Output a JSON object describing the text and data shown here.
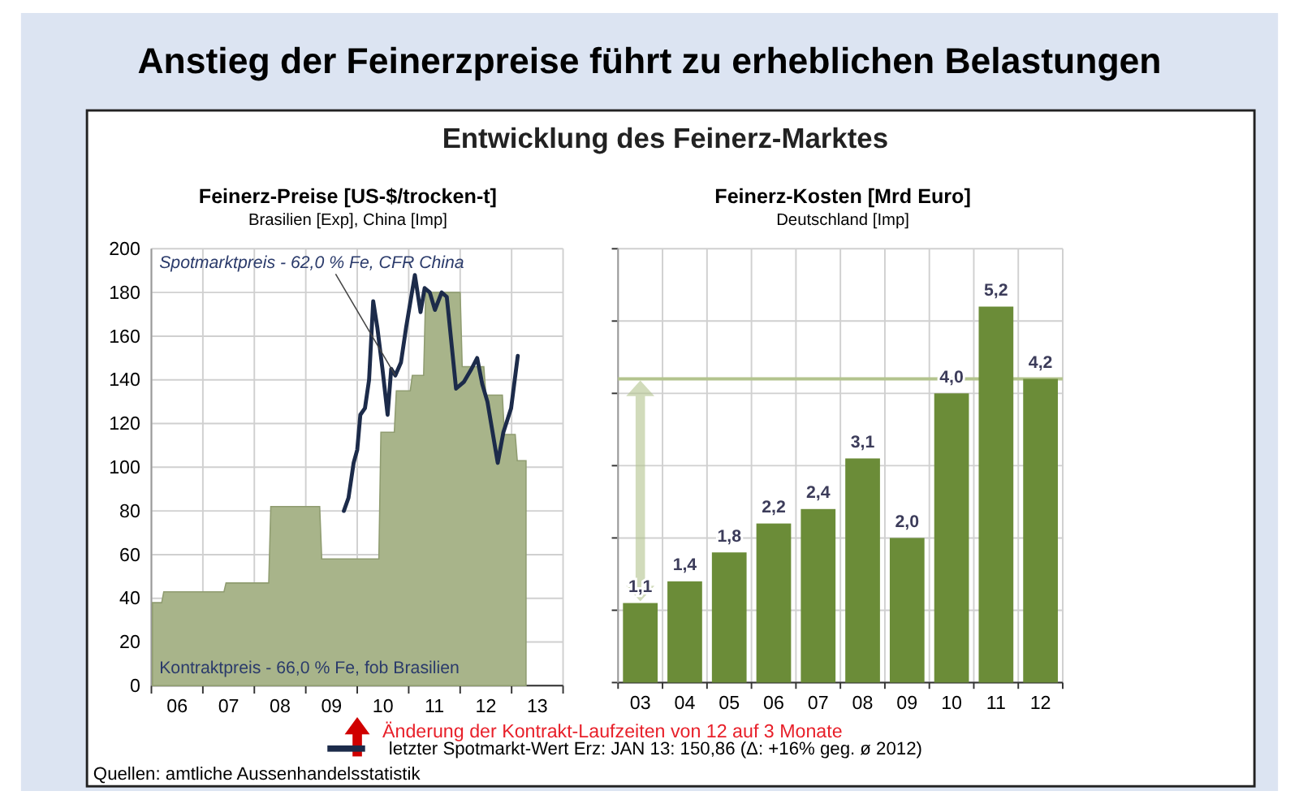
{
  "chart_data": [
    {
      "type": "other",
      "title": "Anstieg der Feinerzpreise führt zu erheblichen Belastungen",
      "subtitle": "Entwicklung des Feinerz-Marktes",
      "annotations": [
        "Quellen: amtliche Aussenhandelsstatistik"
      ]
    },
    {
      "type": "line",
      "title": "Feinerz-Preise [US-$/trocken-t]",
      "subtitle": "Brasilien [Exp], China [Imp]",
      "xlim": [
        5.5,
        13.5
      ],
      "ylim": [
        0,
        200
      ],
      "xticks": [
        {
          "value": 5.5,
          "label": null
        },
        {
          "value": 6,
          "label": "06"
        },
        {
          "value": 6.5,
          "label": null
        },
        {
          "value": 7,
          "label": "07"
        },
        {
          "value": 7.5,
          "label": null
        },
        {
          "value": 8,
          "label": "08"
        },
        {
          "value": 8.5,
          "label": null
        },
        {
          "value": 9,
          "label": "09"
        },
        {
          "value": 9.5,
          "label": null
        },
        {
          "value": 10,
          "label": "10"
        },
        {
          "value": 10.5,
          "label": null
        },
        {
          "value": 11,
          "label": "11"
        },
        {
          "value": 11.5,
          "label": null
        },
        {
          "value": 12,
          "label": "12"
        },
        {
          "value": 12.5,
          "label": null
        },
        {
          "value": 13,
          "label": "13"
        },
        {
          "value": 13.5,
          "label": null
        }
      ],
      "yticks": [
        0,
        20,
        40,
        60,
        80,
        100,
        120,
        140,
        160,
        180,
        200
      ],
      "grid": true,
      "series": [
        {
          "type": "area",
          "name": "Kontraktpreis - 66,0 % Fe, fob Brasilien",
          "color": "#a8b48a",
          "x": [
            5.52,
            5.7,
            5.74,
            6.91,
            6.95,
            7.78,
            7.82,
            8.77,
            8.81,
            9.92,
            9.96,
            10.22,
            10.26,
            10.53,
            10.57,
            10.79,
            10.83,
            11.5,
            11.54,
            11.96,
            12.0,
            12.32,
            12.36,
            12.57,
            12.61,
            12.78
          ],
          "values": [
            38,
            38,
            43,
            43,
            47,
            47,
            82,
            82,
            58,
            58,
            116,
            116,
            135,
            135,
            142,
            142,
            180,
            180,
            146,
            146,
            133,
            133,
            115,
            115,
            103,
            103
          ]
        },
        {
          "type": "line",
          "name": "Spotmarktpreis - 62,0 % Fe, CFR China",
          "color": "#1c2b4a",
          "x": [
            9.24,
            9.33,
            9.43,
            9.5,
            9.56,
            9.65,
            9.73,
            9.81,
            9.89,
            9.99,
            10.09,
            10.16,
            10.24,
            10.35,
            10.45,
            10.62,
            10.73,
            10.81,
            10.91,
            11.01,
            11.14,
            11.24,
            11.42,
            11.57,
            11.72,
            11.83,
            11.93,
            12.03,
            12.23,
            12.34,
            12.49,
            12.62
          ],
          "values": [
            80,
            86,
            102,
            108,
            124,
            127,
            140,
            176,
            164,
            145,
            124,
            145,
            142,
            148,
            164,
            188,
            171,
            182,
            180,
            172,
            180,
            178,
            136,
            139,
            145,
            150,
            138,
            130,
            102,
            116,
            127,
            151
          ]
        }
      ],
      "annotations": [
        "Änderung der Kontrakt-Laufzeiten von 12 auf 3 Monate",
        "letzter Spotmarkt-Wert Erz: JAN 13: 150,86 (Δ: +16% geg. ø 2012)"
      ]
    },
    {
      "type": "bar",
      "title": "Feinerz-Kosten [Mrd Euro]",
      "subtitle": "Deutschland [Imp]",
      "categories": [
        "03",
        "04",
        "05",
        "06",
        "07",
        "08",
        "09",
        "10",
        "11",
        "12"
      ],
      "values": [
        1.1,
        1.4,
        1.8,
        2.2,
        2.4,
        3.1,
        2.0,
        4.0,
        5.2,
        4.2
      ],
      "value_labels": [
        "1,1",
        "1,4",
        "1,8",
        "2,2",
        "2,4",
        "3,1",
        "2,0",
        "4,0",
        "5,2",
        "4,2"
      ],
      "color": "#6b8c38",
      "ylim": [
        0,
        6
      ],
      "yticks": [
        {
          "value": 0,
          "label": null
        },
        {
          "value": 1,
          "label": null
        },
        {
          "value": 2,
          "label": null
        },
        {
          "value": 3,
          "label": null
        },
        {
          "value": 4,
          "label": null
        },
        {
          "value": 5,
          "label": null
        },
        {
          "value": 6,
          "label": null
        }
      ],
      "tick_labels": "x",
      "grid": true,
      "ref_lines": [
        {
          "axis": "y",
          "value": 4.2,
          "color": "#b3c48e"
        }
      ]
    }
  ]
}
